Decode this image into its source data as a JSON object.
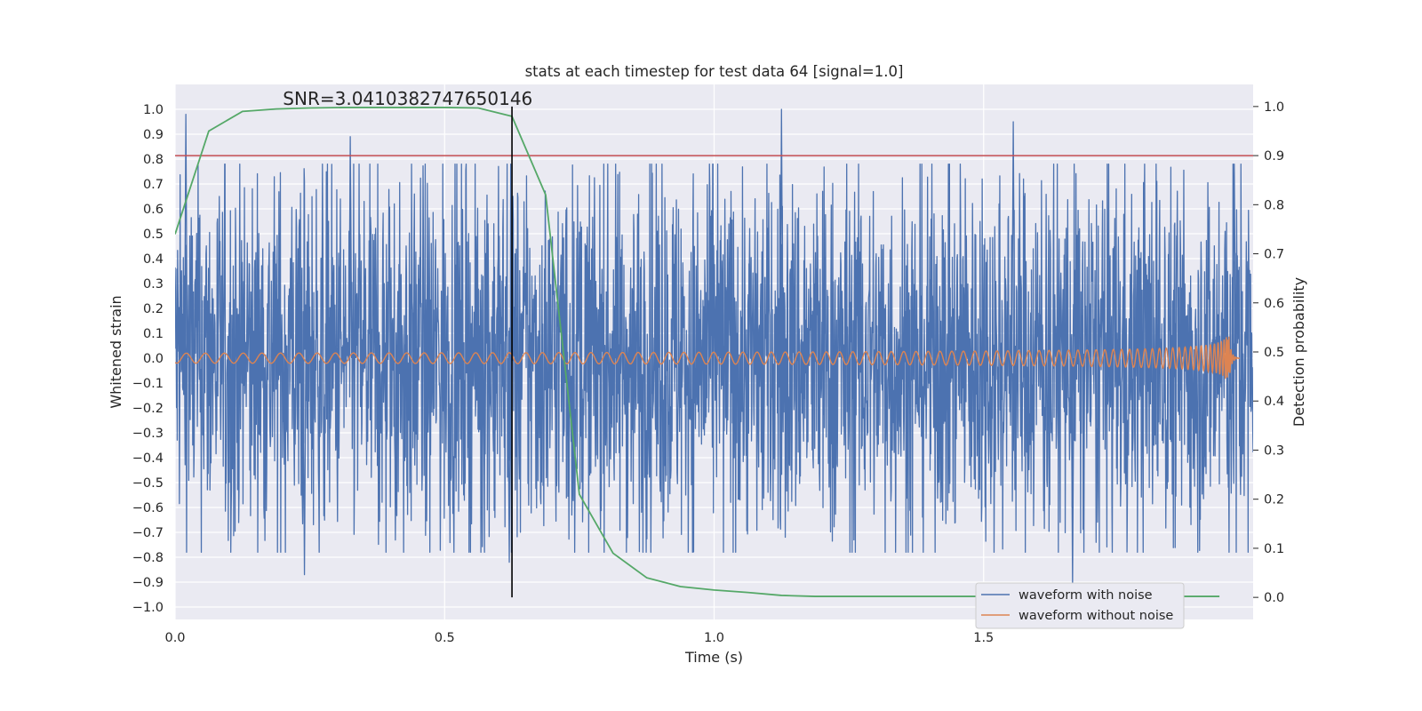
{
  "chart_data": {
    "type": "line",
    "title": "stats at each timestep for test data 64 [signal=1.0]",
    "xlabel": "Time (s)",
    "ylabel": "Whitened strain",
    "y2label": "Detection probability",
    "annotation": "SNR=3.0410382747650146",
    "xlim": [
      0.0,
      2.0
    ],
    "ylim": [
      -1.05,
      1.1
    ],
    "y2lim": [
      -0.045,
      1.045
    ],
    "x_ticks": [
      0.0,
      0.5,
      1.0,
      1.5
    ],
    "x_tick_labels": [
      "0.0",
      "0.5",
      "1.0",
      "1.5"
    ],
    "y_ticks": [
      1.0,
      0.9,
      0.8,
      0.7,
      0.6,
      0.5,
      0.4,
      0.3,
      0.2,
      0.1,
      0.0,
      -0.1,
      -0.2,
      -0.3,
      -0.4,
      -0.5,
      -0.6,
      -0.7,
      -0.8,
      -0.9,
      -1.0
    ],
    "y_tick_labels": [
      "1.0",
      "0.9",
      "0.8",
      "0.7",
      "0.6",
      "0.5",
      "0.4",
      "0.3",
      "0.2",
      "0.1",
      "0.0",
      "−0.1",
      "−0.2",
      "−0.3",
      "−0.4",
      "−0.5",
      "−0.6",
      "−0.7",
      "−0.8",
      "−0.9",
      "−1.0"
    ],
    "y2_ticks": [
      1.0,
      0.9,
      0.8,
      0.7,
      0.6,
      0.5,
      0.4,
      0.3,
      0.2,
      0.1,
      0.0
    ],
    "y2_tick_labels": [
      "1.0",
      "0.9",
      "0.8",
      "0.7",
      "0.6",
      "0.5",
      "0.4",
      "0.3",
      "0.2",
      "0.1",
      "0.0"
    ],
    "grid": true,
    "legend_position": "lower-right",
    "series": [
      {
        "name": "waveform with noise",
        "color": "#4c72b0",
        "axis": "left",
        "x_start": 0.0,
        "x_end": 2.0,
        "peaks": [
          {
            "x": 0.02,
            "y": 0.98
          },
          {
            "x": 0.24,
            "y": -0.87
          },
          {
            "x": 0.325,
            "y": 0.89
          },
          {
            "x": 0.62,
            "y": -0.82
          },
          {
            "x": 1.125,
            "y": 1.0
          },
          {
            "x": 1.555,
            "y": 0.95
          },
          {
            "x": 1.665,
            "y": -0.92
          },
          {
            "x": 1.965,
            "y": 0.78
          }
        ]
      },
      {
        "name": "waveform without noise",
        "color": "#dd8452",
        "axis": "left",
        "x_start": 0.0,
        "x_end": 1.975,
        "amplitude_start": 0.02,
        "amplitude_peak": 0.1,
        "merger_time": 1.955
      },
      {
        "name": "detection probability",
        "color": "#55a868",
        "axis": "right",
        "x": [
          0.0,
          0.0625,
          0.125,
          0.1875,
          0.25,
          0.3125,
          0.375,
          0.4375,
          0.5,
          0.5625,
          0.625,
          0.6875,
          0.75,
          0.8125,
          0.875,
          0.9375,
          1.0,
          1.0625,
          1.125,
          1.1875,
          1.25,
          1.3125,
          1.375,
          1.4375,
          1.5,
          1.5625,
          1.625,
          1.6875,
          1.75,
          1.8125,
          1.875,
          1.9375
        ],
        "y": [
          0.74,
          0.95,
          0.99,
          0.995,
          0.997,
          0.998,
          0.998,
          0.998,
          0.998,
          0.997,
          0.98,
          0.82,
          0.21,
          0.09,
          0.04,
          0.022,
          0.015,
          0.01,
          0.004,
          0.002,
          0.002,
          0.002,
          0.002,
          0.002,
          0.002,
          0.002,
          0.002,
          0.002,
          0.002,
          0.002,
          0.002,
          0.002
        ]
      }
    ],
    "threshold": {
      "value": 0.9,
      "axis": "right",
      "color": "#c44e52"
    },
    "marker_line": {
      "x": 0.625,
      "color": "#000000"
    }
  }
}
